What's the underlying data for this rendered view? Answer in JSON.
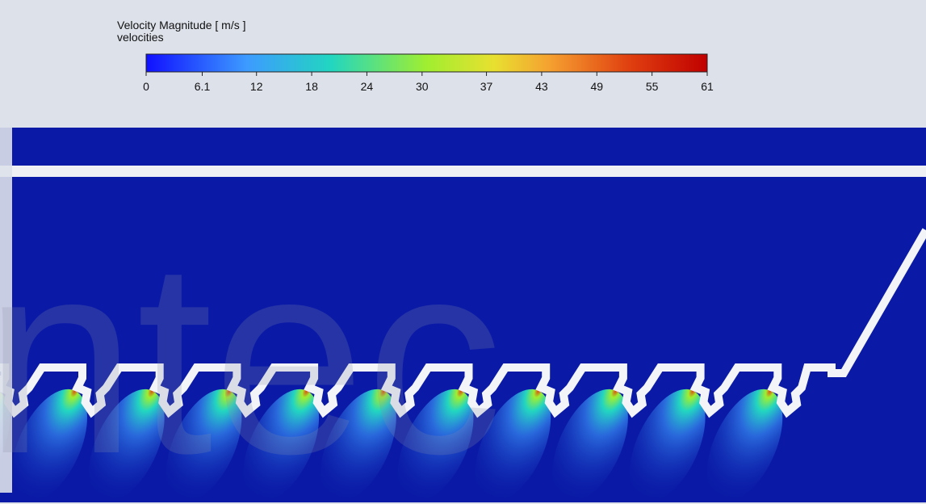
{
  "legend": {
    "title": "Velocity Magnitude [ m/s ]",
    "subtitle": "velocities",
    "range": [
      0,
      61
    ],
    "ticks": [
      0,
      6.1,
      12,
      18,
      24,
      30,
      37,
      43,
      49,
      55,
      61
    ]
  },
  "watermark": "ntec"
}
